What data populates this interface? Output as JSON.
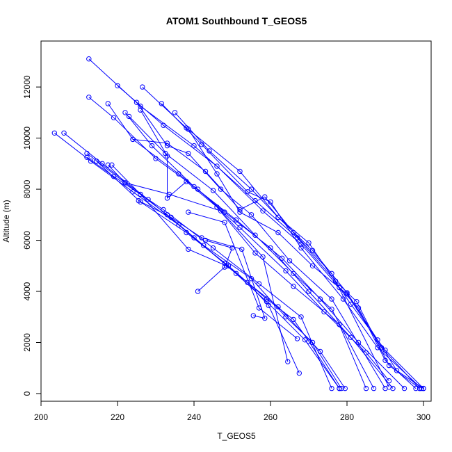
{
  "chart_data": {
    "type": "line",
    "title": "ATOM1 Southbound T_GEOS5",
    "xlabel": "T_GEOS5",
    "ylabel": "Altitude (m)",
    "xlim": [
      200,
      302
    ],
    "ylim": [
      -300,
      13800
    ],
    "xticks": [
      200,
      220,
      240,
      260,
      280,
      300
    ],
    "yticks": [
      0,
      2000,
      4000,
      6000,
      8000,
      10000,
      12000
    ],
    "marker": "open-circle",
    "color": "#0000ff",
    "grid": false,
    "series": [
      {
        "x": [
          212.5,
          226,
          240,
          256,
          267,
          277,
          282.5,
          291,
          299
        ],
        "y": [
          13100,
          11250,
          9700,
          7550,
          6100,
          4400,
          3600,
          1100,
          200
        ]
      },
      {
        "x": [
          220,
          232,
          246,
          258,
          268,
          278,
          283,
          290,
          298
        ],
        "y": [
          12050,
          10500,
          8900,
          7150,
          5850,
          4150,
          3350,
          1300,
          200
        ]
      },
      {
        "x": [
          226.5,
          238,
          252,
          262,
          271,
          280,
          288,
          293,
          300
        ],
        "y": [
          12000,
          10400,
          8700,
          6900,
          5600,
          3950,
          2100,
          900,
          200
        ]
      },
      {
        "x": [
          231.5,
          242,
          254,
          260,
          268,
          279,
          288,
          299.5
        ],
        "y": [
          11350,
          9750,
          7900,
          7500,
          5700,
          3700,
          1800,
          200
        ]
      },
      {
        "x": [
          235,
          244,
          255,
          262,
          270,
          281,
          290,
          300
        ],
        "y": [
          11000,
          9500,
          8000,
          6900,
          5900,
          3500,
          1700,
          200
        ]
      },
      {
        "x": [
          212.5,
          219,
          230,
          241,
          252,
          264,
          274,
          285,
          291
        ],
        "y": [
          11600,
          10800,
          9200,
          8000,
          6500,
          4800,
          3200,
          1600,
          500
        ]
      },
      {
        "x": [
          217.5,
          224,
          236,
          248,
          260,
          270,
          281,
          292
        ],
        "y": [
          11350,
          9950,
          8600,
          7100,
          5700,
          4000,
          2200,
          200
        ]
      },
      {
        "x": [
          222,
          229,
          240,
          251,
          263,
          273,
          283,
          295
        ],
        "y": [
          11000,
          9700,
          8100,
          6800,
          5300,
          3700,
          2000,
          200
        ]
      },
      {
        "x": [
          223,
          232.5,
          245,
          256,
          266,
          276,
          287
        ],
        "y": [
          10850,
          9400,
          7950,
          6200,
          4700,
          3300,
          200
        ]
      },
      {
        "x": [
          225,
          233,
          238.5,
          247,
          255,
          265,
          276,
          290
        ],
        "y": [
          11400,
          9700,
          9400,
          8000,
          7000,
          5200,
          3700,
          200
        ]
      },
      {
        "x": [
          226,
          233,
          233,
          238,
          246,
          256,
          266,
          278,
          285
        ],
        "y": [
          11100,
          9300,
          7650,
          8300,
          7300,
          5500,
          4200,
          2700,
          200
        ]
      },
      {
        "x": [
          238.5,
          246,
          252,
          262,
          271,
          280,
          289,
          299
        ],
        "y": [
          10350,
          8600,
          7100,
          6300,
          5000,
          3900,
          1800,
          200
        ]
      },
      {
        "x": [
          224,
          233,
          243,
          252,
          258.5,
          266,
          276,
          291
        ],
        "y": [
          9950,
          9800,
          8700,
          7200,
          7700,
          6300,
          4700,
          250
        ]
      },
      {
        "x": [
          203.5,
          213,
          224,
          236,
          248,
          259,
          269,
          278
        ],
        "y": [
          10200,
          9100,
          7900,
          6600,
          5100,
          3600,
          2100,
          200
        ]
      },
      {
        "x": [
          206,
          216,
          228,
          240,
          251,
          262,
          273,
          279.5
        ],
        "y": [
          10200,
          9000,
          7600,
          6100,
          4700,
          3400,
          1650,
          200
        ]
      },
      {
        "x": [
          212,
          222,
          233,
          242.5,
          255,
          264,
          271,
          278.5
        ],
        "y": [
          9400,
          8250,
          7000,
          5800,
          4500,
          3000,
          2000,
          200
        ]
      },
      {
        "x": [
          212,
          219,
          232,
          245,
          257,
          268,
          276
        ],
        "y": [
          9250,
          8500,
          7200,
          5700,
          4300,
          3000,
          200
        ]
      },
      {
        "x": [
          214.5,
          226,
          238,
          249,
          259,
          266,
          270,
          278
        ],
        "y": [
          9100,
          7500,
          6300,
          5000,
          3700,
          2900,
          2050,
          200
        ]
      },
      {
        "x": [
          217.5,
          222,
          233.5,
          247,
          258,
          264.5
        ],
        "y": [
          8950,
          8250,
          7800,
          7150,
          5350,
          1250
        ]
      },
      {
        "x": [
          218.5,
          226,
          238.5,
          248.5,
          254,
          259.5,
          267.5
        ],
        "y": [
          8950,
          7800,
          5650,
          5000,
          4350,
          3450,
          800
        ]
      },
      {
        "x": [
          225.5,
          234,
          242,
          252.5,
          258.5,
          255.5
        ],
        "y": [
          7550,
          6900,
          6100,
          5650,
          2950,
          3050
        ]
      },
      {
        "x": [
          238.5,
          248,
          257,
          267
        ],
        "y": [
          7100,
          6700,
          3350,
          2150
        ]
      },
      {
        "x": [
          243,
          250,
          248,
          241
        ],
        "y": [
          6000,
          5700,
          4950,
          4000
        ]
      }
    ]
  }
}
